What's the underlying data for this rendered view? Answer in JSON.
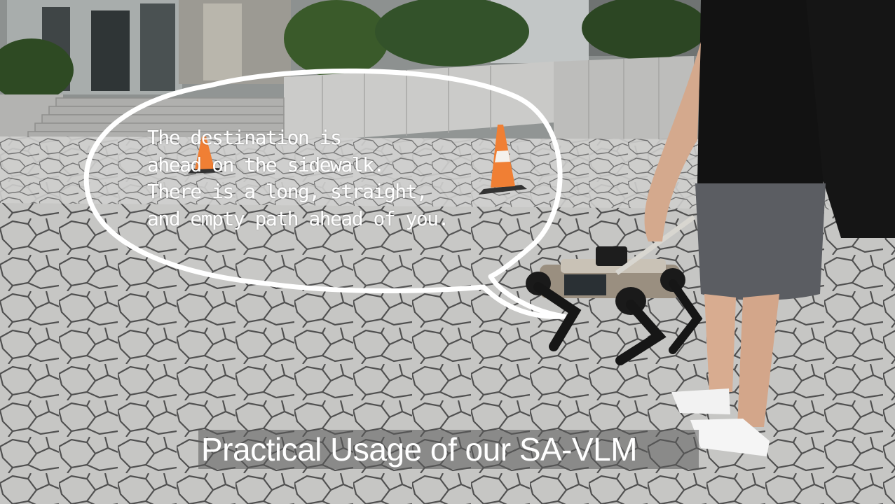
{
  "speech_bubble": {
    "lines": [
      "The destination is",
      "ahead on the sidewalk.",
      "There is a long, straight,",
      "and empty path ahead of you."
    ]
  },
  "caption": "Practical Usage of our SA-VLM",
  "colors": {
    "pavement": "#c4c4c2",
    "paver_lines": "#4a4a4a",
    "bubble_outline": "#ffffff",
    "cone": "#f07a2c",
    "shirt": "#121212",
    "shorts": "#5a5c61",
    "hedge": "#2f4a26"
  }
}
